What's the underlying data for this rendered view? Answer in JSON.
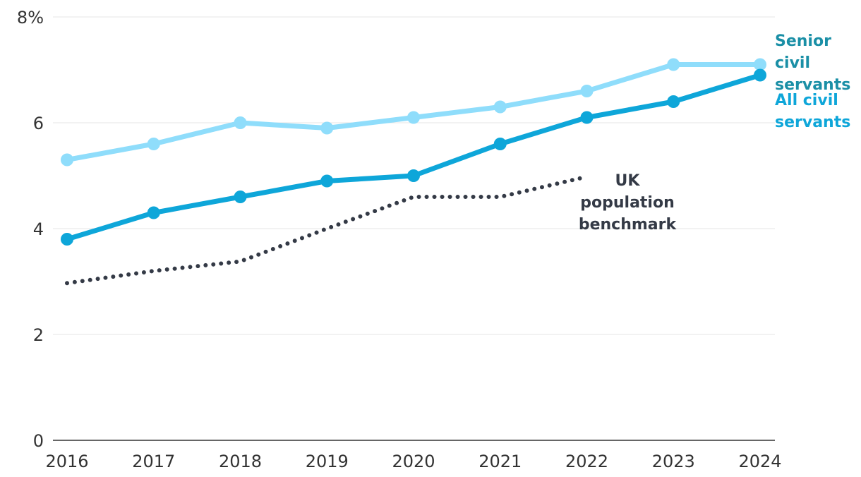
{
  "chart_data": {
    "type": "line",
    "title": "",
    "xlabel": "",
    "ylabel": "",
    "x": [
      "2016",
      "2017",
      "2018",
      "2019",
      "2020",
      "2021",
      "2022",
      "2023",
      "2024"
    ],
    "ylim": [
      0,
      8
    ],
    "yticks": [
      0,
      2,
      4,
      6,
      8
    ],
    "ytick_labels": [
      "0",
      "2",
      "4",
      "6",
      "8%"
    ],
    "grid": true,
    "legend": "inline labels at line ends",
    "series": [
      {
        "name": "Senior civil servants",
        "label_lines": [
          "Senior",
          "civil",
          "servants"
        ],
        "color": "#8fddfb",
        "label_color": "#1a8fa6",
        "style": "solid-markers",
        "values": [
          5.3,
          5.6,
          6.0,
          5.9,
          6.1,
          6.3,
          6.6,
          7.1,
          7.1
        ]
      },
      {
        "name": "All civil servants",
        "label_lines": [
          "All civil",
          "servants"
        ],
        "color": "#0ea6d9",
        "label_color": "#0ea6d9",
        "style": "solid-markers",
        "values": [
          3.8,
          4.3,
          4.6,
          4.9,
          5.0,
          5.6,
          6.1,
          6.4,
          6.9
        ]
      },
      {
        "name": "UK population benchmark",
        "label_lines": [
          "UK",
          "population",
          "benchmark"
        ],
        "color": "#343a46",
        "label_color": "#343a46",
        "style": "dotted",
        "values": [
          2.97,
          3.2,
          3.38,
          4.0,
          4.6,
          4.6,
          4.98,
          null,
          null
        ]
      }
    ]
  }
}
